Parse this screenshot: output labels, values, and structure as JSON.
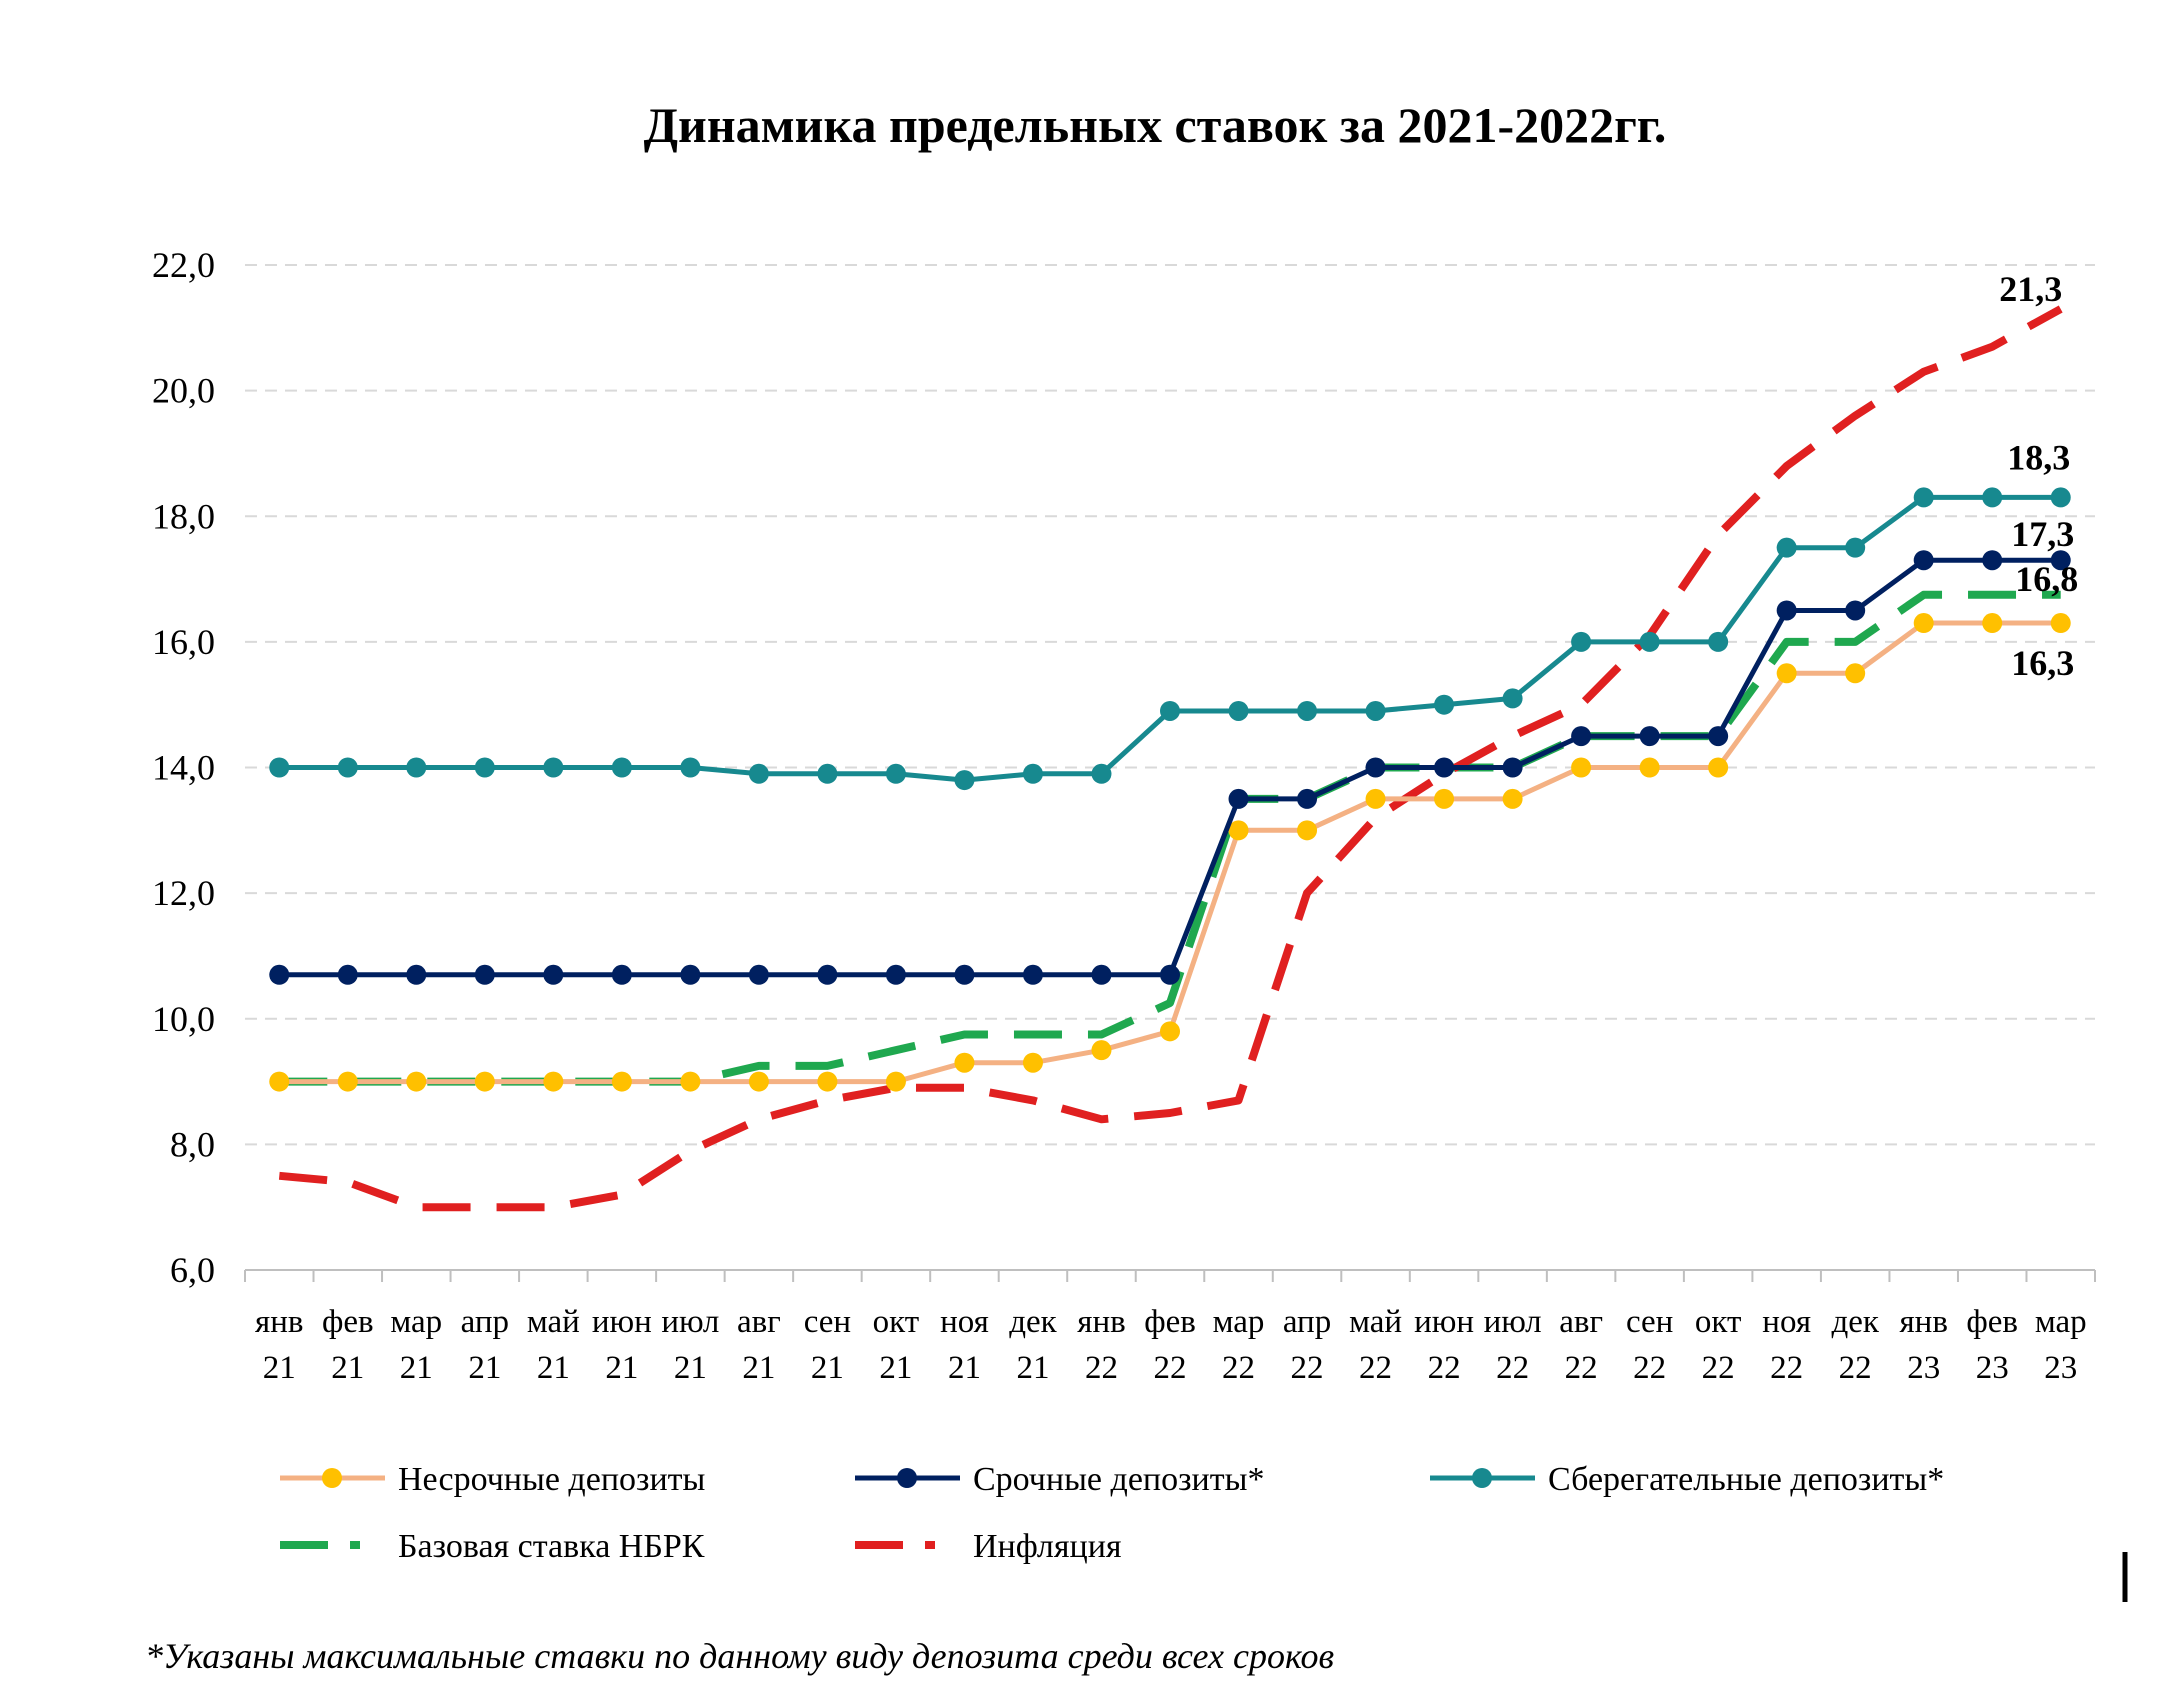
{
  "chart_data": {
    "type": "line",
    "title": "Динамика предельных ставок за 2021-2022гг.",
    "xlabel": "",
    "ylabel": "",
    "ylim": [
      6,
      22
    ],
    "yticks": [
      "6,0",
      "8,0",
      "10,0",
      "12,0",
      "14,0",
      "16,0",
      "18,0",
      "20,0",
      "22,0"
    ],
    "grid": true,
    "legend_position": "bottom",
    "categories": [
      [
        "янв",
        "21"
      ],
      [
        "фев",
        "21"
      ],
      [
        "мар",
        "21"
      ],
      [
        "апр",
        "21"
      ],
      [
        "май",
        "21"
      ],
      [
        "июн",
        "21"
      ],
      [
        "июл",
        "21"
      ],
      [
        "авг",
        "21"
      ],
      [
        "сен",
        "21"
      ],
      [
        "окт",
        "21"
      ],
      [
        "ноя",
        "21"
      ],
      [
        "дек",
        "21"
      ],
      [
        "янв",
        "22"
      ],
      [
        "фев",
        "22"
      ],
      [
        "мар",
        "22"
      ],
      [
        "апр",
        "22"
      ],
      [
        "май",
        "22"
      ],
      [
        "июн",
        "22"
      ],
      [
        "июл",
        "22"
      ],
      [
        "авг",
        "22"
      ],
      [
        "сен",
        "22"
      ],
      [
        "окт",
        "22"
      ],
      [
        "ноя",
        "22"
      ],
      [
        "дек",
        "22"
      ],
      [
        "янв",
        "23"
      ],
      [
        "фев",
        "23"
      ],
      [
        "мар",
        "23"
      ]
    ],
    "series": [
      {
        "name": "Несрочные депозиты",
        "style": "line-markers",
        "line_color": "#f4b183",
        "marker_color": "#ffc000",
        "values": [
          9.0,
          9.0,
          9.0,
          9.0,
          9.0,
          9.0,
          9.0,
          9.0,
          9.0,
          9.0,
          9.3,
          9.3,
          9.5,
          9.8,
          13.0,
          13.0,
          13.5,
          13.5,
          13.5,
          14.0,
          14.0,
          14.0,
          15.5,
          15.5,
          16.3,
          16.3,
          16.3
        ],
        "end_label": "16,3"
      },
      {
        "name": "Срочные депозиты*",
        "style": "line-markers",
        "line_color": "#002060",
        "marker_color": "#002060",
        "values": [
          10.7,
          10.7,
          10.7,
          10.7,
          10.7,
          10.7,
          10.7,
          10.7,
          10.7,
          10.7,
          10.7,
          10.7,
          10.7,
          10.7,
          13.5,
          13.5,
          14.0,
          14.0,
          14.0,
          14.5,
          14.5,
          14.5,
          16.5,
          16.5,
          17.3,
          17.3,
          17.3
        ],
        "end_label": "17,3"
      },
      {
        "name": "Сберегательные депозиты*",
        "style": "line-markers",
        "line_color": "#17898f",
        "marker_color": "#17898f",
        "values": [
          14.0,
          14.0,
          14.0,
          14.0,
          14.0,
          14.0,
          14.0,
          13.9,
          13.9,
          13.9,
          13.8,
          13.9,
          13.9,
          14.9,
          14.9,
          14.9,
          14.9,
          15.0,
          15.1,
          16.0,
          16.0,
          16.0,
          17.5,
          17.5,
          18.3,
          18.3,
          18.3
        ],
        "end_label": "18,3"
      },
      {
        "name": "Базовая ставка НБРК",
        "style": "dashed",
        "line_color": "#1fa84f",
        "values": [
          9.0,
          9.0,
          9.0,
          9.0,
          9.0,
          9.0,
          9.0,
          9.25,
          9.25,
          9.5,
          9.75,
          9.75,
          9.75,
          10.25,
          13.5,
          13.5,
          14.0,
          14.0,
          14.0,
          14.5,
          14.5,
          14.5,
          16.0,
          16.0,
          16.75,
          16.75,
          16.75
        ],
        "end_label": "16,8"
      },
      {
        "name": "Инфляция",
        "style": "dashed",
        "line_color": "#e02020",
        "values": [
          7.5,
          7.4,
          7.0,
          7.0,
          7.0,
          7.2,
          7.9,
          8.4,
          8.7,
          8.9,
          8.9,
          8.7,
          8.4,
          8.5,
          8.7,
          12.0,
          13.2,
          13.9,
          14.5,
          15.0,
          16.1,
          17.7,
          18.8,
          19.6,
          20.3,
          20.7,
          21.3
        ],
        "end_label": "21,3"
      }
    ]
  },
  "footnote": "*Указаны максимальные ставки по данному виду депозита среди всех  сроков"
}
